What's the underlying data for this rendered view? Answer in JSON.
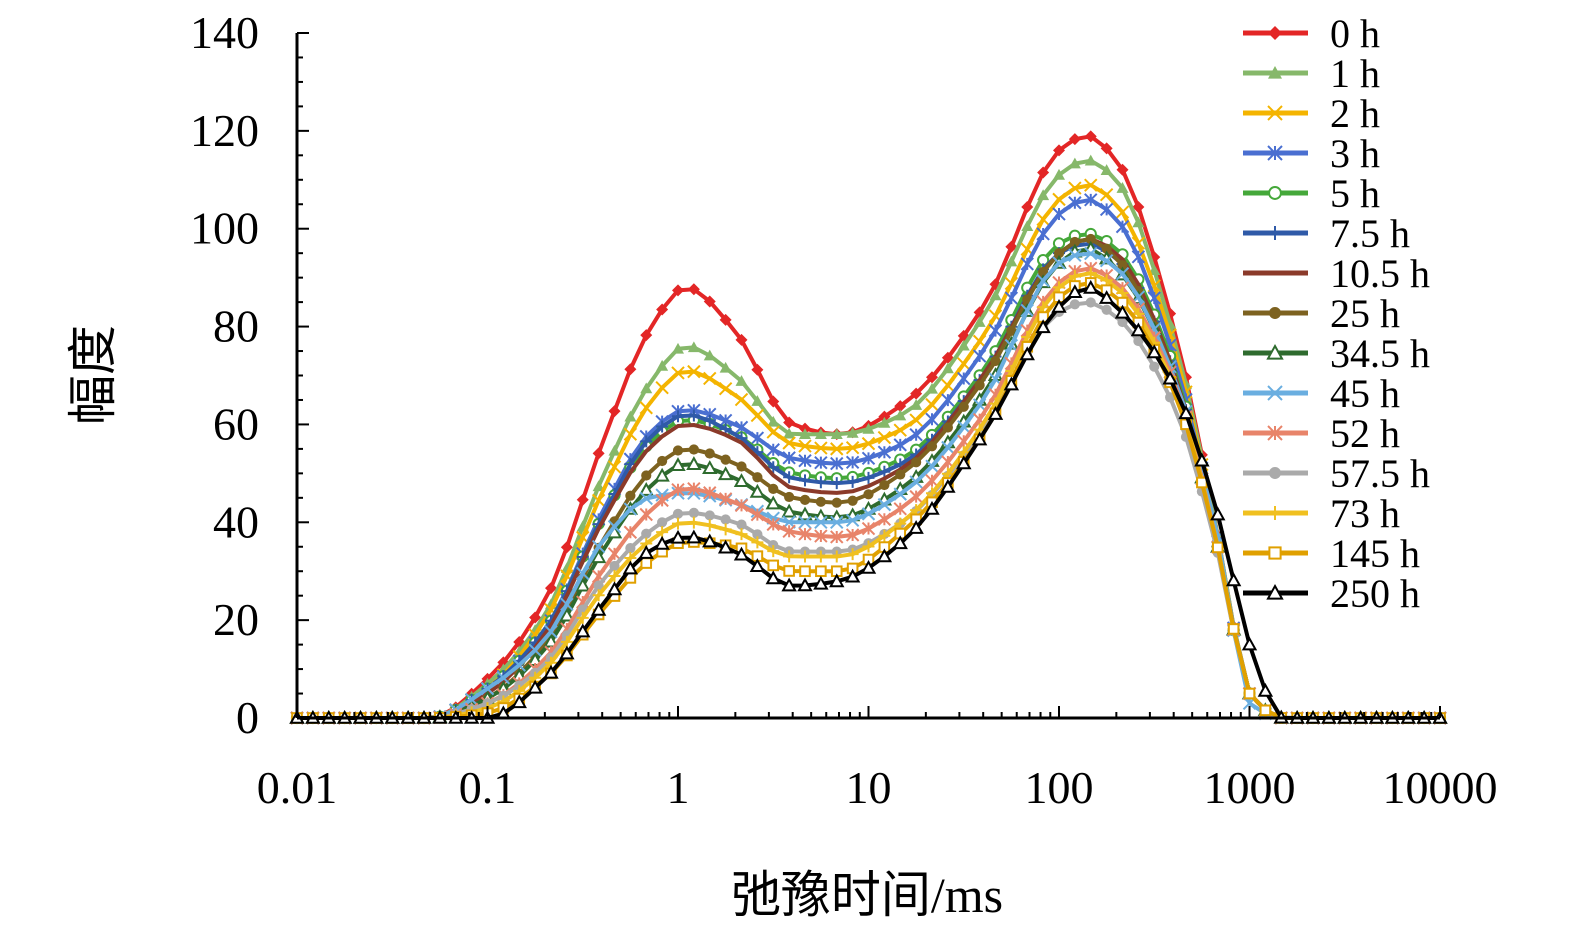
{
  "chart_data": {
    "type": "line",
    "title": "",
    "xlabel": "弛豫时间/ms",
    "ylabel": "幅度",
    "xscale": "log",
    "xlim": [
      0.01,
      10000
    ],
    "ylim": [
      0,
      140
    ],
    "xticks": [
      "0.01",
      "0.1",
      "1",
      "10",
      "100",
      "1000",
      "10000"
    ],
    "yticks": [
      "0",
      "20",
      "40",
      "60",
      "80",
      "100",
      "120",
      "140"
    ],
    "grid": false,
    "legend_position": "top-right",
    "series": [
      {
        "name": "0 h",
        "color": "#e32626",
        "marker": "diamond",
        "x": [
          0.01,
          0.05,
          0.1,
          0.2,
          0.4,
          0.7,
          1.1,
          2,
          4,
          7,
          15,
          40,
          100,
          140,
          200,
          400,
          700,
          1000,
          1500,
          10000
        ],
        "y": [
          0,
          0,
          8,
          24,
          56,
          79,
          88,
          79,
          60,
          58,
          64,
          84,
          116,
          119,
          114,
          80,
          35,
          5,
          0,
          0
        ]
      },
      {
        "name": "1 h",
        "color": "#86b86a",
        "marker": "triangle",
        "x": [
          0.01,
          0.05,
          0.1,
          0.2,
          0.4,
          0.7,
          1.1,
          2,
          4,
          7,
          15,
          40,
          100,
          140,
          200,
          400,
          700,
          1000,
          1500,
          10000
        ],
        "y": [
          0,
          0,
          7,
          21,
          49,
          68,
          76,
          70,
          58,
          58,
          62,
          82,
          111,
          114,
          110,
          78,
          35,
          5,
          0,
          0
        ]
      },
      {
        "name": "2 h",
        "color": "#f4b400",
        "marker": "x",
        "x": [
          0.01,
          0.05,
          0.1,
          0.2,
          0.4,
          0.7,
          1.1,
          2,
          4,
          7,
          15,
          40,
          100,
          140,
          200,
          400,
          700,
          1000,
          1500,
          10000
        ],
        "y": [
          0,
          0,
          6,
          20,
          46,
          64,
          71,
          66,
          56,
          55,
          59,
          78,
          106,
          109,
          105,
          76,
          34,
          5,
          0,
          0
        ]
      },
      {
        "name": "3 h",
        "color": "#4a6fd1",
        "marker": "star",
        "x": [
          0.01,
          0.05,
          0.1,
          0.2,
          0.4,
          0.7,
          1.1,
          2,
          4,
          7,
          15,
          40,
          100,
          140,
          200,
          400,
          700,
          1000,
          1500,
          10000
        ],
        "y": [
          0,
          0,
          6,
          18,
          42,
          58,
          63,
          60,
          53,
          52,
          56,
          75,
          103,
          106,
          102,
          74,
          34,
          5,
          0,
          0
        ]
      },
      {
        "name": "5 h",
        "color": "#45a83a",
        "marker": "circle-open",
        "x": [
          0.01,
          0.05,
          0.1,
          0.2,
          0.4,
          0.7,
          1.1,
          2,
          4,
          7,
          15,
          40,
          100,
          140,
          200,
          400,
          700,
          1000,
          1500,
          10000
        ],
        "y": [
          0,
          0,
          6,
          18,
          41,
          56,
          61,
          58,
          50,
          49,
          53,
          71,
          97,
          99,
          96,
          72,
          33,
          5,
          0,
          0
        ]
      },
      {
        "name": "7.5 h",
        "color": "#2f5aa8",
        "marker": "plus",
        "x": [
          0.01,
          0.05,
          0.1,
          0.2,
          0.4,
          0.7,
          1.1,
          2,
          4,
          7,
          15,
          40,
          100,
          140,
          200,
          400,
          700,
          1000,
          1500,
          10000
        ],
        "y": [
          0,
          0,
          6,
          18,
          41,
          57,
          62,
          58,
          49,
          48,
          52,
          70,
          95,
          97,
          94,
          71,
          33,
          5,
          0,
          0
        ]
      },
      {
        "name": "10.5 h",
        "color": "#8b3a2a",
        "marker": "none",
        "x": [
          0.01,
          0.05,
          0.1,
          0.2,
          0.4,
          0.7,
          1.1,
          2,
          4,
          7,
          15,
          40,
          100,
          140,
          200,
          400,
          700,
          1000,
          1500,
          10000
        ],
        "y": [
          0,
          0,
          5,
          17,
          40,
          55,
          60,
          57,
          47,
          46,
          51,
          70,
          95,
          98,
          95,
          71,
          33,
          5,
          0,
          0
        ]
      },
      {
        "name": "25 h",
        "color": "#7d6220",
        "marker": "circle",
        "x": [
          0.01,
          0.05,
          0.1,
          0.2,
          0.4,
          0.7,
          1.1,
          2,
          4,
          7,
          15,
          40,
          100,
          140,
          200,
          400,
          700,
          1000,
          1500,
          10000
        ],
        "y": [
          0,
          0,
          4,
          15,
          36,
          50,
          55,
          52,
          45,
          44,
          50,
          69,
          95,
          98,
          94,
          70,
          33,
          5,
          0,
          0
        ]
      },
      {
        "name": "34.5 h",
        "color": "#2e6b2e",
        "marker": "triangle-open",
        "x": [
          0.01,
          0.05,
          0.1,
          0.2,
          0.4,
          0.7,
          1.1,
          2,
          4,
          7,
          15,
          40,
          100,
          140,
          200,
          400,
          700,
          1000,
          1500,
          10000
        ],
        "y": [
          0,
          0,
          4,
          14,
          34,
          47,
          52,
          49,
          42,
          41,
          47,
          66,
          93,
          96,
          92,
          70,
          33,
          5,
          0,
          0
        ]
      },
      {
        "name": "45 h",
        "color": "#6aaee0",
        "marker": "x",
        "x": [
          0.01,
          0.05,
          0.1,
          0.2,
          0.4,
          0.7,
          1.1,
          2,
          4,
          7,
          15,
          40,
          100,
          140,
          200,
          400,
          700,
          1000,
          1500,
          10000
        ],
        "y": [
          0,
          0,
          6,
          16,
          36,
          45,
          46,
          44,
          40,
          40,
          46,
          65,
          93,
          95,
          92,
          70,
          35,
          3,
          0,
          0
        ]
      },
      {
        "name": "52 h",
        "color": "#e8846a",
        "marker": "star",
        "x": [
          0.01,
          0.05,
          0.1,
          0.2,
          0.4,
          0.7,
          1.1,
          2,
          4,
          7,
          15,
          40,
          100,
          140,
          200,
          400,
          700,
          1000,
          1500,
          10000
        ],
        "y": [
          0,
          0,
          3,
          12,
          30,
          42,
          47,
          44,
          38,
          37,
          43,
          62,
          89,
          92,
          89,
          69,
          33,
          5,
          0,
          0
        ]
      },
      {
        "name": "57.5 h",
        "color": "#aaaaaa",
        "marker": "circle",
        "x": [
          0.01,
          0.05,
          0.1,
          0.2,
          0.4,
          0.7,
          1.1,
          2,
          4,
          7,
          15,
          40,
          100,
          140,
          200,
          400,
          700,
          1000,
          1500,
          10000
        ],
        "y": [
          0,
          0,
          3,
          11,
          28,
          38,
          42,
          40,
          34,
          34,
          40,
          59,
          83,
          85,
          82,
          64,
          32,
          5,
          0,
          0
        ]
      },
      {
        "name": "73 h",
        "color": "#f0c020",
        "marker": "plus",
        "x": [
          0.01,
          0.05,
          0.1,
          0.2,
          0.4,
          0.7,
          1.1,
          2,
          4,
          7,
          15,
          40,
          100,
          140,
          200,
          400,
          700,
          1000,
          1500,
          10000
        ],
        "y": [
          0,
          0,
          2,
          10,
          26,
          36,
          40,
          38,
          33,
          33,
          40,
          60,
          88,
          91,
          88,
          68,
          33,
          5,
          0,
          0
        ]
      },
      {
        "name": "145 h",
        "color": "#e0a000",
        "marker": "square-open",
        "x": [
          0.01,
          0.05,
          0.1,
          0.2,
          0.4,
          0.7,
          1.1,
          2,
          4,
          7,
          15,
          40,
          100,
          140,
          200,
          400,
          700,
          1000,
          1500,
          10000
        ],
        "y": [
          0,
          0,
          1,
          8,
          22,
          32,
          36,
          35,
          30,
          30,
          38,
          58,
          86,
          89,
          86,
          67,
          33,
          5,
          0,
          0
        ]
      },
      {
        "name": "250 h",
        "color": "#000000",
        "marker": "triangle-open",
        "x": [
          0.01,
          0.05,
          0.1,
          0.2,
          0.4,
          0.7,
          1.1,
          2,
          4,
          7,
          15,
          40,
          100,
          140,
          200,
          400,
          700,
          1000,
          1500,
          10000
        ],
        "y": [
          0,
          0,
          0,
          8,
          23,
          34,
          37,
          34,
          27,
          28,
          36,
          58,
          84,
          88,
          84,
          68,
          40,
          15,
          0,
          0
        ]
      }
    ]
  }
}
